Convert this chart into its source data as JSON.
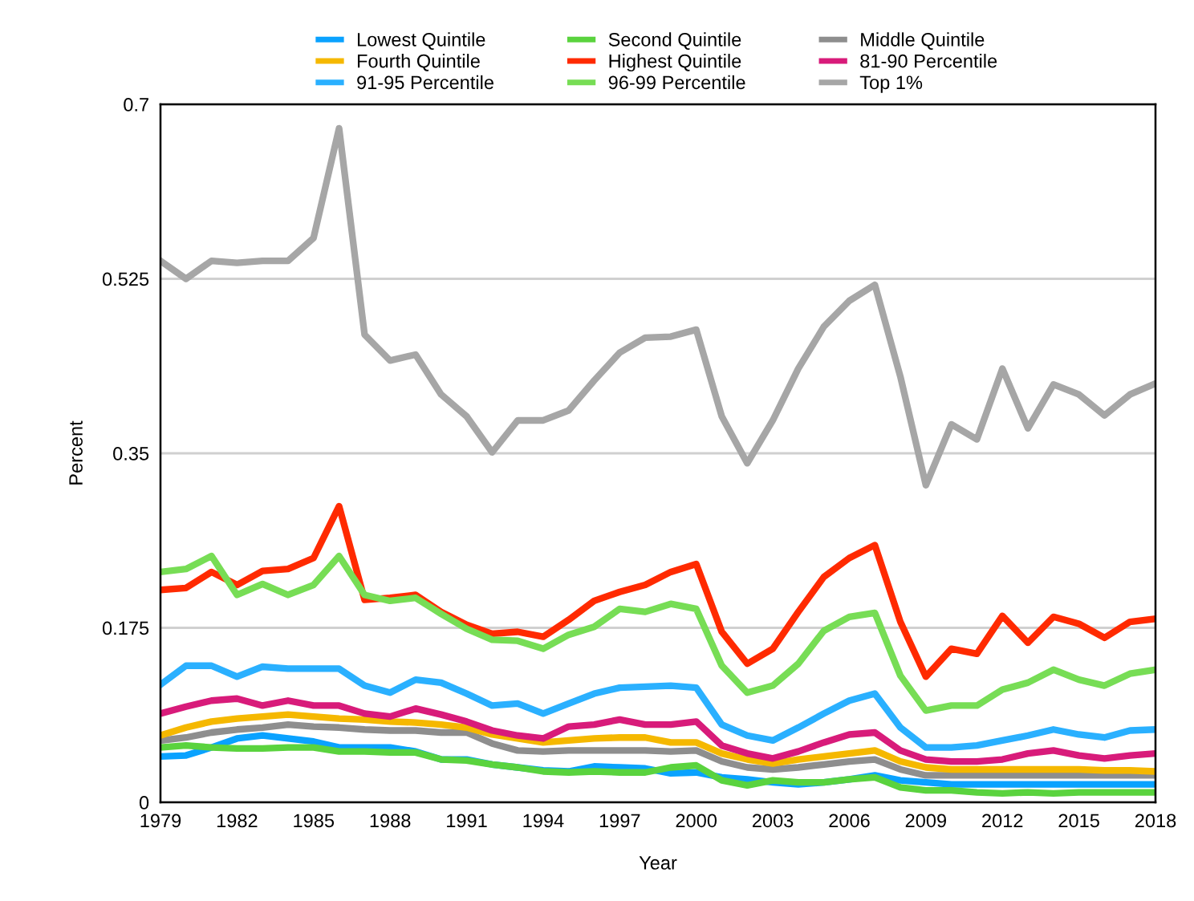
{
  "chart_data": {
    "type": "line",
    "xlabel": "Year",
    "ylabel": "Percent",
    "x": [
      1979,
      1980,
      1981,
      1982,
      1983,
      1984,
      1985,
      1986,
      1987,
      1988,
      1989,
      1990,
      1991,
      1992,
      1993,
      1994,
      1995,
      1996,
      1997,
      1998,
      1999,
      2000,
      2001,
      2002,
      2003,
      2004,
      2005,
      2006,
      2007,
      2008,
      2009,
      2010,
      2011,
      2012,
      2013,
      2014,
      2015,
      2016,
      2017,
      2018
    ],
    "xlim": [
      1979,
      2018
    ],
    "xticks": [
      1979,
      1982,
      1985,
      1988,
      1991,
      1994,
      1997,
      2000,
      2003,
      2006,
      2009,
      2012,
      2015,
      2018
    ],
    "ylim": [
      0,
      0.7
    ],
    "yticks": [
      0,
      0.175,
      0.35,
      0.525,
      0.7
    ],
    "grid": "y",
    "legend": "top",
    "marker": "none",
    "line_style": "solid",
    "series": [
      {
        "name": "Lowest Quintile",
        "color": "#0aa2ff",
        "values": [
          0.046,
          0.047,
          0.055,
          0.064,
          0.067,
          0.064,
          0.061,
          0.055,
          0.055,
          0.055,
          0.051,
          0.043,
          0.043,
          0.038,
          0.035,
          0.032,
          0.031,
          0.036,
          0.035,
          0.034,
          0.029,
          0.03,
          0.025,
          0.023,
          0.02,
          0.018,
          0.02,
          0.023,
          0.027,
          0.022,
          0.02,
          0.018,
          0.018,
          0.018,
          0.018,
          0.018,
          0.018,
          0.018,
          0.018,
          0.018
        ]
      },
      {
        "name": "Second Quintile",
        "color": "#5ad33e",
        "values": [
          0.055,
          0.057,
          0.055,
          0.054,
          0.054,
          0.055,
          0.055,
          0.051,
          0.051,
          0.05,
          0.05,
          0.043,
          0.042,
          0.038,
          0.035,
          0.031,
          0.03,
          0.031,
          0.03,
          0.03,
          0.035,
          0.037,
          0.022,
          0.017,
          0.022,
          0.02,
          0.02,
          0.023,
          0.025,
          0.015,
          0.012,
          0.012,
          0.01,
          0.009,
          0.01,
          0.009,
          0.01,
          0.01,
          0.01,
          0.01
        ]
      },
      {
        "name": "Middle Quintile",
        "color": "#8e8e8e",
        "values": [
          0.062,
          0.065,
          0.07,
          0.073,
          0.075,
          0.078,
          0.076,
          0.075,
          0.073,
          0.072,
          0.072,
          0.07,
          0.07,
          0.059,
          0.052,
          0.051,
          0.052,
          0.052,
          0.052,
          0.052,
          0.051,
          0.052,
          0.041,
          0.035,
          0.033,
          0.035,
          0.038,
          0.041,
          0.043,
          0.033,
          0.027,
          0.027,
          0.027,
          0.027,
          0.027,
          0.027,
          0.027,
          0.027,
          0.027,
          0.027
        ]
      },
      {
        "name": "Fourth Quintile",
        "color": "#f5b800",
        "values": [
          0.067,
          0.075,
          0.081,
          0.084,
          0.086,
          0.088,
          0.086,
          0.084,
          0.083,
          0.081,
          0.08,
          0.078,
          0.075,
          0.068,
          0.064,
          0.06,
          0.062,
          0.064,
          0.065,
          0.065,
          0.06,
          0.06,
          0.049,
          0.043,
          0.039,
          0.043,
          0.046,
          0.049,
          0.052,
          0.041,
          0.035,
          0.033,
          0.033,
          0.033,
          0.033,
          0.033,
          0.033,
          0.032,
          0.032,
          0.031
        ]
      },
      {
        "name": "Highest Quintile",
        "color": "#ff2a00",
        "values": [
          0.213,
          0.215,
          0.231,
          0.218,
          0.232,
          0.234,
          0.245,
          0.297,
          0.203,
          0.205,
          0.208,
          0.191,
          0.178,
          0.169,
          0.171,
          0.166,
          0.183,
          0.202,
          0.211,
          0.218,
          0.231,
          0.239,
          0.171,
          0.139,
          0.154,
          0.191,
          0.226,
          0.245,
          0.258,
          0.181,
          0.126,
          0.154,
          0.149,
          0.187,
          0.16,
          0.186,
          0.179,
          0.165,
          0.181,
          0.184
        ]
      },
      {
        "name": "81-90 Percentile",
        "color": "#d81b7a",
        "values": [
          0.089,
          0.096,
          0.102,
          0.104,
          0.097,
          0.102,
          0.097,
          0.097,
          0.089,
          0.086,
          0.094,
          0.088,
          0.081,
          0.072,
          0.067,
          0.064,
          0.076,
          0.078,
          0.083,
          0.078,
          0.078,
          0.081,
          0.057,
          0.049,
          0.044,
          0.051,
          0.06,
          0.068,
          0.07,
          0.052,
          0.043,
          0.041,
          0.041,
          0.043,
          0.049,
          0.052,
          0.047,
          0.044,
          0.047,
          0.049
        ]
      },
      {
        "name": "91-95 Percentile",
        "color": "#2ab0ff",
        "values": [
          0.118,
          0.137,
          0.137,
          0.126,
          0.136,
          0.134,
          0.134,
          0.134,
          0.117,
          0.11,
          0.123,
          0.12,
          0.109,
          0.097,
          0.099,
          0.089,
          0.099,
          0.109,
          0.115,
          0.116,
          0.117,
          0.115,
          0.078,
          0.067,
          0.062,
          0.075,
          0.089,
          0.102,
          0.109,
          0.075,
          0.055,
          0.055,
          0.057,
          0.062,
          0.067,
          0.073,
          0.068,
          0.065,
          0.072,
          0.073
        ]
      },
      {
        "name": "96-99 Percentile",
        "color": "#77dd55",
        "values": [
          0.231,
          0.234,
          0.247,
          0.208,
          0.219,
          0.208,
          0.218,
          0.247,
          0.208,
          0.202,
          0.205,
          0.189,
          0.174,
          0.163,
          0.162,
          0.154,
          0.168,
          0.176,
          0.194,
          0.191,
          0.199,
          0.194,
          0.137,
          0.11,
          0.117,
          0.139,
          0.172,
          0.186,
          0.19,
          0.127,
          0.092,
          0.097,
          0.097,
          0.113,
          0.12,
          0.133,
          0.123,
          0.117,
          0.129,
          0.133
        ]
      },
      {
        "name": "Top 1%",
        "color": "#a6a6a6",
        "values": [
          0.543,
          0.525,
          0.543,
          0.541,
          0.543,
          0.543,
          0.566,
          0.676,
          0.469,
          0.443,
          0.449,
          0.409,
          0.387,
          0.351,
          0.383,
          0.383,
          0.393,
          0.423,
          0.451,
          0.466,
          0.467,
          0.474,
          0.387,
          0.34,
          0.383,
          0.435,
          0.477,
          0.503,
          0.519,
          0.427,
          0.318,
          0.379,
          0.364,
          0.435,
          0.375,
          0.419,
          0.409,
          0.388,
          0.409,
          0.42
        ]
      }
    ]
  }
}
